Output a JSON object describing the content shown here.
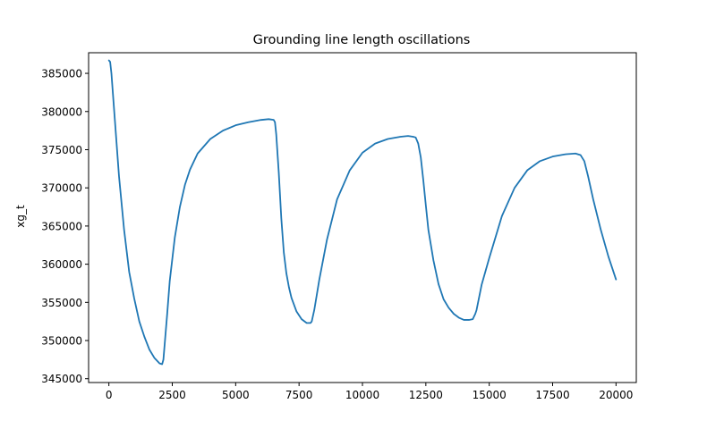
{
  "chart_data": {
    "type": "line",
    "title": "Grounding line length oscillations",
    "xlabel": "",
    "ylabel": "xg_t",
    "xlim": [
      -800,
      20800
    ],
    "ylim": [
      344500,
      387700
    ],
    "xticks": [
      0,
      2500,
      5000,
      7500,
      10000,
      12500,
      15000,
      17500,
      20000
    ],
    "yticks": [
      345000,
      350000,
      355000,
      360000,
      365000,
      370000,
      375000,
      380000,
      385000
    ],
    "grid": false,
    "color": "#1f77b4",
    "series": [
      {
        "x": [
          0,
          50,
          100,
          200,
          400,
          600,
          800,
          1000,
          1200,
          1400,
          1600,
          1800,
          2000,
          2100,
          2150,
          2200,
          2300,
          2400,
          2600,
          2800,
          3000,
          3200,
          3500,
          4000,
          4500,
          5000,
          5500,
          6000,
          6300,
          6500,
          6550,
          6600,
          6700,
          6800,
          6900,
          7000,
          7100,
          7200,
          7400,
          7600,
          7800,
          7950,
          8000,
          8100,
          8300,
          8600,
          9000,
          9500,
          10000,
          10500,
          11000,
          11500,
          11800,
          12000,
          12100,
          12200,
          12300,
          12400,
          12500,
          12600,
          12800,
          13000,
          13200,
          13400,
          13600,
          13800,
          14000,
          14200,
          14350,
          14450,
          14500,
          14700,
          15000,
          15500,
          16000,
          16500,
          17000,
          17500,
          18000,
          18400,
          18600,
          18750,
          18900,
          19100,
          19400,
          19700,
          20000
        ],
        "y": [
          386700,
          386500,
          385000,
          380500,
          371500,
          364500,
          359000,
          355500,
          352500,
          350500,
          348800,
          347700,
          347000,
          346900,
          347500,
          349500,
          353500,
          357800,
          363500,
          367500,
          370400,
          372400,
          374500,
          376400,
          377500,
          378200,
          378600,
          378900,
          379000,
          378900,
          378600,
          377000,
          372000,
          366000,
          361500,
          358800,
          357000,
          355600,
          353800,
          352800,
          352300,
          352300,
          352500,
          354000,
          358000,
          363200,
          368500,
          372300,
          374600,
          375800,
          376400,
          376700,
          376800,
          376700,
          376600,
          375800,
          374000,
          371000,
          367700,
          364500,
          360500,
          357400,
          355400,
          354300,
          353500,
          353000,
          352700,
          352700,
          352800,
          353500,
          354000,
          357300,
          360800,
          366300,
          370000,
          372300,
          373500,
          374100,
          374400,
          374500,
          374300,
          373500,
          371500,
          368500,
          364500,
          361000,
          358000
        ]
      }
    ]
  }
}
